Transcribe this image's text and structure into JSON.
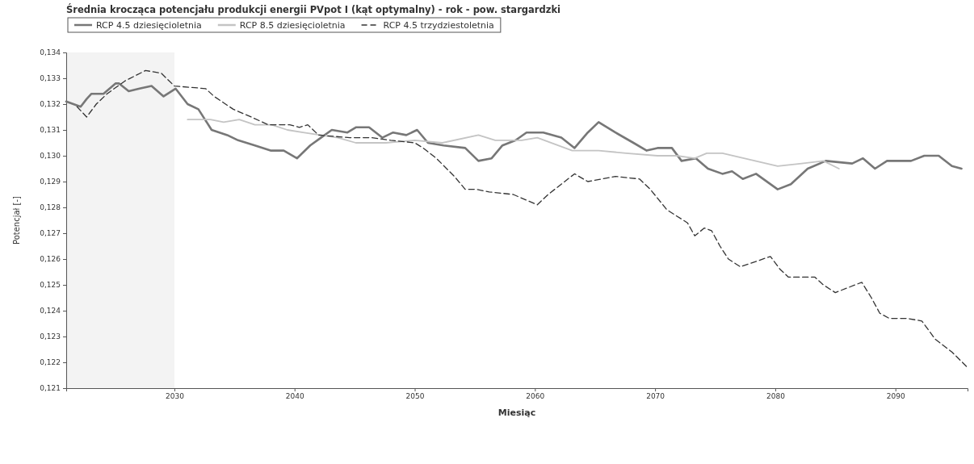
{
  "chart_data": {
    "type": "line",
    "title": "Średnia krocząca potencjału produkcji energii PVpot I (kąt optymalny) - rok - pow. stargardzki",
    "xlabel": "Miesiąc",
    "ylabel": "Potencjał [-]",
    "legend": "top left",
    "grid": false,
    "xlim": [
      2021,
      2096
    ],
    "xticks": [
      2030,
      2040,
      2050,
      2060,
      2070,
      2080,
      2090
    ],
    "ylim": [
      0.121,
      0.134
    ],
    "yticks": [
      {
        "value": 0.121,
        "label": "0,121"
      },
      {
        "value": 0.122,
        "label": "0,122"
      },
      {
        "value": 0.123,
        "label": "0,123"
      },
      {
        "value": 0.124,
        "label": "0,124"
      },
      {
        "value": 0.125,
        "label": "0,125"
      },
      {
        "value": 0.126,
        "label": "0,126"
      },
      {
        "value": 0.127,
        "label": "0,127"
      },
      {
        "value": 0.128,
        "label": "0,128"
      },
      {
        "value": 0.129,
        "label": "0,129"
      },
      {
        "value": 0.13,
        "label": "0,130"
      },
      {
        "value": 0.131,
        "label": "0,131"
      },
      {
        "value": 0.132,
        "label": "0,132"
      },
      {
        "value": 0.133,
        "label": "0,133"
      },
      {
        "value": 0.134,
        "label": "0,134"
      }
    ],
    "bands": [
      {
        "axis": "x",
        "from": 2021,
        "to": 2030,
        "color": "#f3f3f3"
      }
    ],
    "series": [
      {
        "name": "RCP 4.5 dziesięcioletnia",
        "color": "#777777",
        "line_style": "solid",
        "x": [
          2021,
          2022.2,
          2022.7,
          2023.1,
          2024.1,
          2025.1,
          2025.4,
          2026.2,
          2027.1,
          2028.1,
          2029.1,
          2030.1,
          2031.1,
          2032,
          2033.1,
          2034.4,
          2035.3,
          2036.7,
          2038,
          2039.1,
          2040.2,
          2041.3,
          2042.2,
          2043.1,
          2044.4,
          2045.1,
          2046.2,
          2047.3,
          2048.2,
          2049.3,
          2050.2,
          2051.1,
          2052.4,
          2054.2,
          2055.3,
          2056.4,
          2057.3,
          2058.4,
          2059.3,
          2060.7,
          2062.2,
          2063.3,
          2064.4,
          2065.3,
          2066.7,
          2068.2,
          2069.3,
          2070.2,
          2071.4,
          2072.2,
          2073.4,
          2074.4,
          2075.6,
          2076.4,
          2077.3,
          2078.4,
          2080.2,
          2081.3,
          2082.7,
          2084.2,
          2086.4,
          2087.3,
          2088.3,
          2089.3,
          2091.3,
          2092.4,
          2093.6,
          2094.7,
          2095.5
        ],
        "values": [
          0.1321,
          0.1319,
          0.1322,
          0.1324,
          0.1324,
          0.1328,
          0.1328,
          0.1325,
          0.1326,
          0.1327,
          0.1323,
          0.1326,
          0.132,
          0.1318,
          0.131,
          0.1308,
          0.1306,
          0.1304,
          0.1302,
          0.1302,
          0.1299,
          0.1304,
          0.1307,
          0.131,
          0.1309,
          0.1311,
          0.1311,
          0.1307,
          0.1309,
          0.1308,
          0.131,
          0.1305,
          0.1304,
          0.1303,
          0.1298,
          0.1299,
          0.1304,
          0.1306,
          0.1309,
          0.1309,
          0.1307,
          0.1303,
          0.1309,
          0.1313,
          0.1309,
          0.1305,
          0.1302,
          0.1303,
          0.1303,
          0.1298,
          0.1299,
          0.1295,
          0.1293,
          0.1294,
          0.1291,
          0.1293,
          0.1287,
          0.1289,
          0.1295,
          0.1298,
          0.1297,
          0.1299,
          0.1295,
          0.1298,
          0.1298,
          0.13,
          0.13,
          0.1296,
          0.1295
        ]
      },
      {
        "name": "RCP 8.5 dziesięcioletnia",
        "color": "#c4c4c4",
        "line_style": "solid",
        "x": [
          2031.1,
          2033,
          2034.1,
          2035.4,
          2036.7,
          2038.1,
          2039.4,
          2040.7,
          2043.6,
          2045.1,
          2047.6,
          2050,
          2052.3,
          2055.3,
          2056.7,
          2058.9,
          2060.2,
          2063.1,
          2065.3,
          2067.6,
          2070.2,
          2071.8,
          2073.3,
          2074.3,
          2075.6,
          2080.2,
          2082.2,
          2084,
          2085.3
        ],
        "values": [
          0.1314,
          0.1314,
          0.1313,
          0.1314,
          0.1312,
          0.1312,
          0.131,
          0.1309,
          0.1307,
          0.1305,
          0.1305,
          0.1306,
          0.1305,
          0.1308,
          0.1306,
          0.1306,
          0.1307,
          0.1302,
          0.1302,
          0.1301,
          0.13,
          0.13,
          0.1299,
          0.1301,
          0.1301,
          0.1296,
          0.1297,
          0.1298,
          0.1295
        ]
      },
      {
        "name": "RCP 4.5 trzydziestoletnia",
        "color": "#333333",
        "line_style": "dashed",
        "x": [
          2021.9,
          2022.7,
          2023.5,
          2024.4,
          2025.9,
          2027.6,
          2028.9,
          2030,
          2032.6,
          2033.3,
          2034.9,
          2036.4,
          2037.8,
          2039.6,
          2040.4,
          2041.1,
          2042,
          2044.6,
          2046.4,
          2048,
          2050,
          2050.7,
          2051.8,
          2053.3,
          2054.2,
          2055.1,
          2056.2,
          2058.2,
          2060.2,
          2061.1,
          2062.2,
          2063.3,
          2064.4,
          2066.7,
          2068.7,
          2069.6,
          2071,
          2072.7,
          2073.3,
          2074.1,
          2074.7,
          2075.4,
          2076.1,
          2077.1,
          2079.6,
          2080.4,
          2081.1,
          2083.3,
          2084,
          2085,
          2087.2,
          2088,
          2088.7,
          2089.5,
          2091,
          2092.2,
          2093.3,
          2094.7,
          2096
        ],
        "values": [
          0.1319,
          0.1315,
          0.132,
          0.1324,
          0.1329,
          0.1333,
          0.1332,
          0.1327,
          0.1326,
          0.1323,
          0.1318,
          0.1315,
          0.1312,
          0.1312,
          0.1311,
          0.1312,
          0.1308,
          0.1307,
          0.1307,
          0.1306,
          0.1305,
          0.1303,
          0.1299,
          0.1292,
          0.1287,
          0.1287,
          0.1286,
          0.1285,
          0.1281,
          0.1285,
          0.1289,
          0.1293,
          0.129,
          0.1292,
          0.1291,
          0.1287,
          0.1279,
          0.1274,
          0.1269,
          0.1272,
          0.1271,
          0.1265,
          0.126,
          0.1257,
          0.1261,
          0.1256,
          0.1253,
          0.1253,
          0.125,
          0.1247,
          0.1251,
          0.1245,
          0.1239,
          0.1237,
          0.1237,
          0.1236,
          0.1229,
          0.1224,
          0.1218
        ]
      }
    ]
  }
}
